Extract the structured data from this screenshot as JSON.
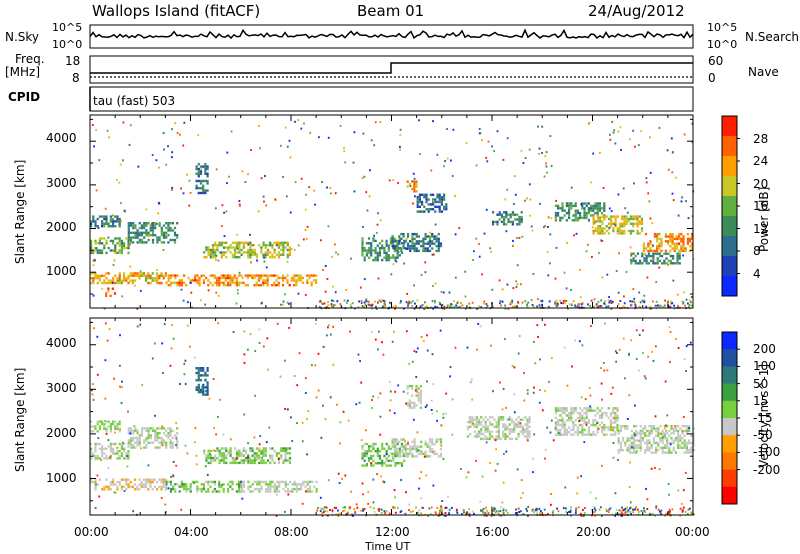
{
  "header": {
    "station": "Wallops Island (fitACF)",
    "beam": "Beam 01",
    "date": "24/Aug/2012"
  },
  "top_panels": {
    "nsky_label": "N.Sky",
    "nsearch_label": "N.Search",
    "noise_tick_top": "10^5",
    "noise_tick_bottom": "10^0",
    "freq_label": "Freq.",
    "freq_unit": "[MHz]",
    "freq_ticks": [
      "18",
      "8"
    ],
    "nave_label": "Nave",
    "nave_ticks": [
      "60",
      "0"
    ],
    "cpid_label": "CPID",
    "cpid_value": "tau (fast) 503"
  },
  "colors": {
    "scatter_bg": "#ffffff",
    "ground_scatter": "#c8c8c8"
  },
  "chart_data": [
    {
      "type": "heatmap",
      "name": "Power",
      "xlabel": "",
      "ylabel": "Slant Range [km]",
      "x_ticks": [
        "00:00",
        "04:00",
        "08:00",
        "12:00",
        "16:00",
        "20:00",
        "00:00"
      ],
      "x_range_hours": [
        0,
        24
      ],
      "y_ticks": [
        1000,
        2000,
        3000,
        4000
      ],
      "y_range": [
        180,
        4600
      ],
      "colorbar": {
        "label": "Power [dB]",
        "ticks": [
          4,
          8,
          12,
          16,
          20,
          24,
          28
        ],
        "range": [
          0,
          32
        ],
        "colors": [
          "#0a28ff",
          "#2040b8",
          "#2d6e8e",
          "#3c8c5a",
          "#60b040",
          "#c8c828",
          "#ffa000",
          "#ff6000",
          "#ff1e00"
        ]
      },
      "bands": [
        {
          "t0": 0.0,
          "t1": 1.2,
          "r0": 2050,
          "r1": 2300,
          "level": 10
        },
        {
          "t0": 0.0,
          "t1": 1.5,
          "r0": 1450,
          "r1": 1800,
          "level": 14
        },
        {
          "t0": 1.5,
          "t1": 3.5,
          "r0": 1700,
          "r1": 2150,
          "level": 12
        },
        {
          "t0": 0.0,
          "t1": 3.0,
          "r0": 750,
          "r1": 1000,
          "level": 22
        },
        {
          "t0": 3.0,
          "t1": 9.0,
          "r0": 700,
          "r1": 950,
          "level": 24
        },
        {
          "t0": 4.5,
          "t1": 8.0,
          "r0": 1350,
          "r1": 1700,
          "level": 18
        },
        {
          "t0": 0.6,
          "t1": 1.0,
          "r0": 450,
          "r1": 650,
          "level": 28
        },
        {
          "t0": 4.2,
          "t1": 4.7,
          "r0": 2800,
          "r1": 3500,
          "level": 9
        },
        {
          "t0": 10.8,
          "t1": 12.5,
          "r0": 1300,
          "r1": 1800,
          "level": 12
        },
        {
          "t0": 12.0,
          "t1": 14.0,
          "r0": 1500,
          "r1": 1900,
          "level": 10
        },
        {
          "t0": 12.6,
          "t1": 13.0,
          "r0": 2850,
          "r1": 3100,
          "level": 24
        },
        {
          "t0": 13.0,
          "t1": 14.2,
          "r0": 2400,
          "r1": 2800,
          "level": 9
        },
        {
          "t0": 16.0,
          "t1": 17.2,
          "r0": 2100,
          "r1": 2400,
          "level": 11
        },
        {
          "t0": 18.5,
          "t1": 20.5,
          "r0": 2200,
          "r1": 2600,
          "level": 12
        },
        {
          "t0": 20.0,
          "t1": 22.0,
          "r0": 1900,
          "r1": 2300,
          "level": 20
        },
        {
          "t0": 22.0,
          "t1": 24.0,
          "r0": 1500,
          "r1": 1900,
          "level": 24
        },
        {
          "t0": 21.5,
          "t1": 23.5,
          "r0": 1200,
          "r1": 1450,
          "level": 12
        }
      ]
    },
    {
      "type": "heatmap",
      "name": "Velocity",
      "xlabel": "Time UT",
      "ylabel": "Slant Range [km]",
      "x_ticks": [
        "00:00",
        "04:00",
        "08:00",
        "12:00",
        "16:00",
        "20:00",
        "00:00"
      ],
      "x_range_hours": [
        0,
        24
      ],
      "y_ticks": [
        1000,
        2000,
        3000,
        4000
      ],
      "y_range": [
        180,
        4600
      ],
      "colorbar": {
        "label": "Velocity [m s^-1]",
        "ticks": [
          200,
          100,
          50,
          15,
          -15,
          -50,
          -100,
          -200
        ],
        "range": [
          -250,
          250
        ],
        "colors": [
          "#0a28ff",
          "#2050a0",
          "#2d7878",
          "#3ca040",
          "#78d040",
          "#c8c8c8",
          "#ffa000",
          "#ff7800",
          "#ff3c00",
          "#ff0000"
        ]
      },
      "bands": [
        {
          "t0": 0.0,
          "t1": 1.5,
          "r0": 1450,
          "r1": 1800,
          "level": 15
        },
        {
          "t0": 0.0,
          "t1": 1.2,
          "r0": 2050,
          "r1": 2300,
          "level": 20
        },
        {
          "t0": 1.5,
          "t1": 3.5,
          "r0": 1700,
          "r1": 2150,
          "level": 0
        },
        {
          "t0": 0.0,
          "t1": 3.0,
          "r0": 750,
          "r1": 1000,
          "level": -40
        },
        {
          "t0": 3.0,
          "t1": 6.0,
          "r0": 700,
          "r1": 950,
          "level": 40
        },
        {
          "t0": 6.0,
          "t1": 9.0,
          "r0": 700,
          "r1": 950,
          "level": 0
        },
        {
          "t0": 4.5,
          "t1": 8.0,
          "r0": 1350,
          "r1": 1700,
          "level": 30
        },
        {
          "t0": 4.2,
          "t1": 4.7,
          "r0": 2900,
          "r1": 3500,
          "level": 150
        },
        {
          "t0": 10.8,
          "t1": 12.5,
          "r0": 1300,
          "r1": 1800,
          "level": 40
        },
        {
          "t0": 12.0,
          "t1": 14.0,
          "r0": 1500,
          "r1": 1900,
          "level": 0
        },
        {
          "t0": 12.6,
          "t1": 13.2,
          "r0": 2600,
          "r1": 3100,
          "level": 0
        },
        {
          "t0": 15.0,
          "t1": 17.5,
          "r0": 1900,
          "r1": 2400,
          "level": 0
        },
        {
          "t0": 18.5,
          "t1": 21.0,
          "r0": 2000,
          "r1": 2600,
          "level": 0
        },
        {
          "t0": 21.0,
          "t1": 24.0,
          "r0": 1600,
          "r1": 2200,
          "level": 0
        }
      ]
    }
  ]
}
